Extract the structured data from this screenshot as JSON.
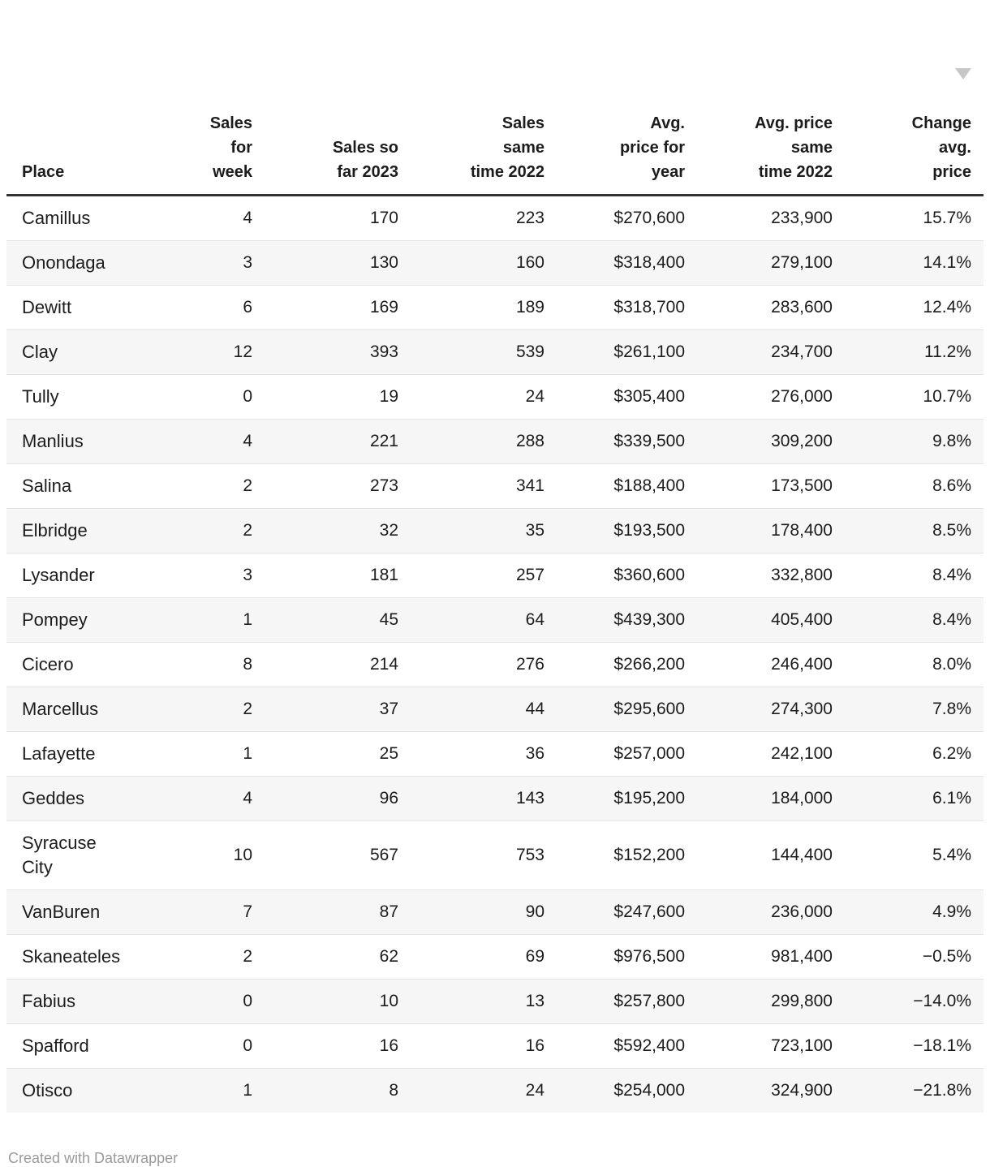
{
  "chart_data": {
    "type": "table",
    "sorted_by": "change",
    "sort_direction": "descending",
    "columns": [
      {
        "id": "place",
        "label_lines": [
          "Place"
        ],
        "align": "left"
      },
      {
        "id": "sales_week",
        "label_lines": [
          "Sales",
          "for",
          "week"
        ],
        "align": "right"
      },
      {
        "id": "sales_2023",
        "label_lines": [
          "Sales so",
          "far 2023"
        ],
        "align": "right"
      },
      {
        "id": "sales_2022",
        "label_lines": [
          "Sales",
          "same",
          "time 2022"
        ],
        "align": "right"
      },
      {
        "id": "avg_price_year",
        "label_lines": [
          "Avg.",
          "price for",
          "year"
        ],
        "align": "right"
      },
      {
        "id": "avg_price_2022",
        "label_lines": [
          "Avg. price",
          "same",
          "time 2022"
        ],
        "align": "right"
      },
      {
        "id": "change",
        "label_lines": [
          "Change",
          "avg.",
          "price"
        ],
        "align": "right",
        "sorted": true
      }
    ],
    "rows": [
      [
        "Camillus",
        "4",
        "170",
        "223",
        "$270,600",
        "233,900",
        "15.7%"
      ],
      [
        "Onondaga",
        "3",
        "130",
        "160",
        "$318,400",
        "279,100",
        "14.1%"
      ],
      [
        "Dewitt",
        "6",
        "169",
        "189",
        "$318,700",
        "283,600",
        "12.4%"
      ],
      [
        "Clay",
        "12",
        "393",
        "539",
        "$261,100",
        "234,700",
        "11.2%"
      ],
      [
        "Tully",
        "0",
        "19",
        "24",
        "$305,400",
        "276,000",
        "10.7%"
      ],
      [
        "Manlius",
        "4",
        "221",
        "288",
        "$339,500",
        "309,200",
        "9.8%"
      ],
      [
        "Salina",
        "2",
        "273",
        "341",
        "$188,400",
        "173,500",
        "8.6%"
      ],
      [
        "Elbridge",
        "2",
        "32",
        "35",
        "$193,500",
        "178,400",
        "8.5%"
      ],
      [
        "Lysander",
        "3",
        "181",
        "257",
        "$360,600",
        "332,800",
        "8.4%"
      ],
      [
        "Pompey",
        "1",
        "45",
        "64",
        "$439,300",
        "405,400",
        "8.4%"
      ],
      [
        "Cicero",
        "8",
        "214",
        "276",
        "$266,200",
        "246,400",
        "8.0%"
      ],
      [
        "Marcellus",
        "2",
        "37",
        "44",
        "$295,600",
        "274,300",
        "7.8%"
      ],
      [
        "Lafayette",
        "1",
        "25",
        "36",
        "$257,000",
        "242,100",
        "6.2%"
      ],
      [
        "Geddes",
        "4",
        "96",
        "143",
        "$195,200",
        "184,000",
        "6.1%"
      ],
      [
        [
          "Syracuse",
          "City"
        ],
        "10",
        "567",
        "753",
        "$152,200",
        "144,400",
        "5.4%"
      ],
      [
        "VanBuren",
        "7",
        "87",
        "90",
        "$247,600",
        "236,000",
        "4.9%"
      ],
      [
        "Skaneateles",
        "2",
        "62",
        "69",
        "$976,500",
        "981,400",
        "−0.5%"
      ],
      [
        "Fabius",
        "0",
        "10",
        "13",
        "$257,800",
        "299,800",
        "−14.0%"
      ],
      [
        "Spafford",
        "0",
        "16",
        "16",
        "$592,400",
        "723,100",
        "−18.1%"
      ],
      [
        "Otisco",
        "1",
        "8",
        "24",
        "$254,000",
        "324,900",
        "−21.8%"
      ]
    ]
  },
  "footer": {
    "credit": "Created with Datawrapper"
  },
  "icons": {
    "sort_indicator": "triangle-down"
  },
  "colors": {
    "text": "#1c1c1c",
    "stripe": "#f6f6f6",
    "row_divider": "#e3e3e3",
    "header_rule": "#333333",
    "sort_icon": "#c7c7c7",
    "credit_text": "#9a9a9a"
  }
}
